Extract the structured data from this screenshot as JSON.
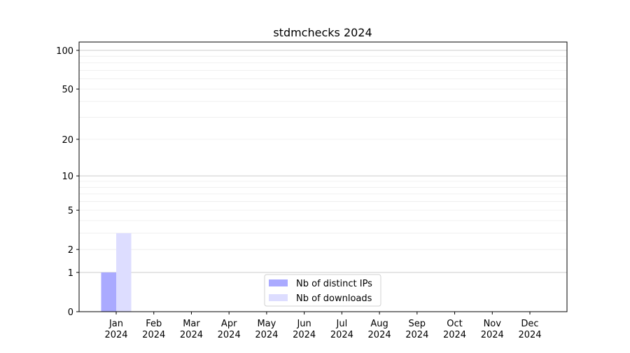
{
  "chart_data": {
    "type": "bar",
    "title": "stdmchecks 2024",
    "xlabel": "",
    "ylabel": "",
    "yscale": "log(1+y)",
    "ylim": [
      0,
      116
    ],
    "yticks": [
      0,
      1,
      2,
      5,
      10,
      20,
      50,
      100
    ],
    "grid": true,
    "legend_position": "bottom-center",
    "categories": [
      "Jan\n2024",
      "Feb\n2024",
      "Mar\n2024",
      "Apr\n2024",
      "May\n2024",
      "Jun\n2024",
      "Jul\n2024",
      "Aug\n2024",
      "Sep\n2024",
      "Oct\n2024",
      "Nov\n2024",
      "Dec\n2024"
    ],
    "series": [
      {
        "name": "Nb of distinct IPs",
        "color": "#aaaaff",
        "values": [
          1,
          0,
          0,
          0,
          0,
          0,
          0,
          0,
          0,
          0,
          0,
          0
        ]
      },
      {
        "name": "Nb of downloads",
        "color": "#ddddff",
        "values": [
          3,
          0,
          0,
          0,
          0,
          0,
          0,
          0,
          0,
          0,
          0,
          0
        ]
      }
    ]
  }
}
